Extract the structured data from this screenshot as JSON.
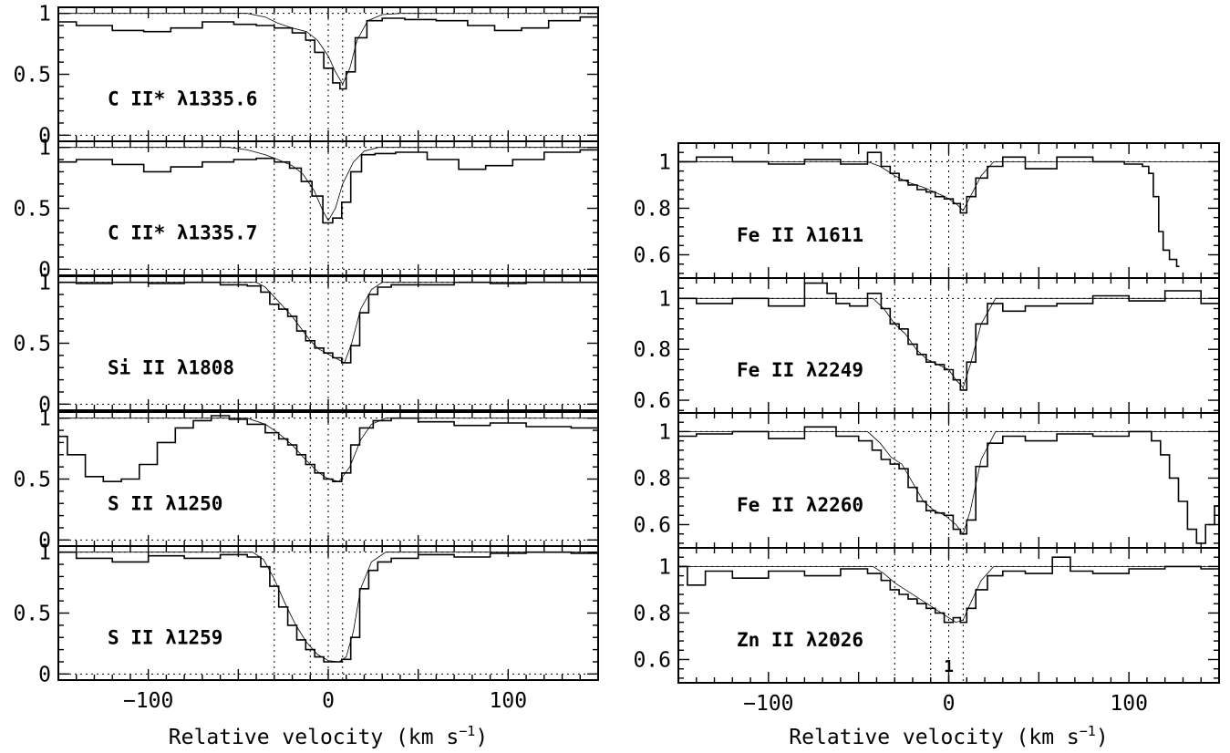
{
  "colors": {
    "ink": "#000000",
    "background": "#ffffff"
  },
  "chart_data": [
    {
      "type": "line",
      "xlabel": "Relative velocity (km s",
      "xlabel_sup": "−1",
      "xlabel_close": ")",
      "xlim": [
        -150,
        150
      ],
      "x_ticks": [
        -100,
        0,
        100
      ],
      "x_tick_labels": [
        "−100",
        "0",
        "100"
      ],
      "y_tick_labels": [
        "1",
        "0.5",
        "0"
      ],
      "vlines": [
        -30,
        -10,
        0,
        8
      ],
      "panels": [
        {
          "label": "C II* λ1335.6",
          "ylim": [
            -0.05,
            1.05
          ],
          "y_ticks": [
            1,
            0.5,
            0
          ],
          "continuum": 1.0,
          "zero_dotted": true,
          "data_x": [
            -150,
            -130,
            -110,
            -95,
            -80,
            -60,
            -45,
            -35,
            -25,
            -15,
            -10,
            -5,
            0,
            5,
            8,
            12,
            18,
            25,
            35,
            50,
            70,
            85,
            100,
            115,
            130,
            150
          ],
          "data_y": [
            0.93,
            0.9,
            0.86,
            0.85,
            0.88,
            0.93,
            0.91,
            0.9,
            0.88,
            0.84,
            0.78,
            0.68,
            0.55,
            0.43,
            0.38,
            0.52,
            0.8,
            0.94,
            0.96,
            0.95,
            0.94,
            0.9,
            0.86,
            0.88,
            0.94,
            0.97
          ],
          "model_x": [
            -150,
            -45,
            -35,
            -28,
            -20,
            -12,
            -6,
            0,
            4,
            8,
            12,
            16,
            22,
            30,
            40,
            150
          ],
          "model_y": [
            1.0,
            1.0,
            0.97,
            0.92,
            0.88,
            0.85,
            0.78,
            0.65,
            0.52,
            0.42,
            0.55,
            0.78,
            0.94,
            0.99,
            1.0,
            1.0
          ]
        },
        {
          "label": "C II* λ1335.7",
          "ylim": [
            -0.05,
            1.05
          ],
          "y_ticks": [
            1,
            0.5,
            0
          ],
          "continuum": 1.0,
          "zero_dotted": true,
          "data_x": [
            -150,
            -130,
            -110,
            -95,
            -80,
            -60,
            -45,
            -35,
            -25,
            -18,
            -12,
            -6,
            0,
            5,
            10,
            15,
            22,
            30,
            45,
            65,
            80,
            95,
            110,
            130,
            150
          ],
          "data_y": [
            0.88,
            0.9,
            0.86,
            0.8,
            0.84,
            0.88,
            0.9,
            0.91,
            0.88,
            0.83,
            0.72,
            0.6,
            0.38,
            0.42,
            0.55,
            0.8,
            0.94,
            0.95,
            0.96,
            0.9,
            0.82,
            0.85,
            0.9,
            0.96,
            0.98
          ],
          "model_x": [
            -150,
            -55,
            -45,
            -35,
            -28,
            -20,
            -14,
            -8,
            -3,
            0,
            4,
            8,
            14,
            20,
            28,
            150
          ],
          "model_y": [
            1.0,
            1.0,
            0.98,
            0.94,
            0.9,
            0.85,
            0.78,
            0.65,
            0.48,
            0.4,
            0.5,
            0.7,
            0.88,
            0.97,
            1.0,
            1.0
          ]
        },
        {
          "label": "Si II λ1808",
          "ylim": [
            -0.05,
            1.05
          ],
          "y_ticks": [
            1,
            0.5,
            0
          ],
          "continuum": 1.0,
          "zero_dotted": true,
          "data_x": [
            -150,
            -130,
            -110,
            -90,
            -70,
            -50,
            -40,
            -35,
            -30,
            -25,
            -20,
            -15,
            -10,
            -5,
            0,
            5,
            10,
            15,
            20,
            25,
            30,
            40,
            60,
            80,
            100,
            120,
            150
          ],
          "data_y": [
            1.0,
            0.99,
            1.0,
            0.99,
            1.0,
            0.98,
            0.97,
            0.92,
            0.82,
            0.78,
            0.72,
            0.6,
            0.52,
            0.46,
            0.42,
            0.38,
            0.34,
            0.48,
            0.75,
            0.9,
            0.96,
            0.98,
            0.98,
            1.0,
            0.99,
            1.0,
            1.0
          ],
          "model_x": [
            -150,
            -40,
            -35,
            -30,
            -25,
            -20,
            -15,
            -10,
            -5,
            0,
            5,
            9,
            13,
            18,
            24,
            30,
            150
          ],
          "model_y": [
            1.0,
            1.0,
            0.96,
            0.88,
            0.8,
            0.72,
            0.62,
            0.52,
            0.45,
            0.41,
            0.37,
            0.34,
            0.5,
            0.78,
            0.94,
            1.0,
            1.0
          ]
        },
        {
          "label": "S II λ1250",
          "ylim": [
            -0.05,
            1.05
          ],
          "y_ticks": [
            1,
            0.5,
            0
          ],
          "continuum": 1.0,
          "zero_dotted": true,
          "data_x": [
            -150,
            -140,
            -130,
            -120,
            -110,
            -100,
            -90,
            -80,
            -70,
            -60,
            -50,
            -40,
            -30,
            -25,
            -20,
            -15,
            -10,
            -5,
            0,
            5,
            10,
            15,
            20,
            30,
            40,
            60,
            80,
            100,
            120,
            150
          ],
          "data_y": [
            0.85,
            0.7,
            0.52,
            0.48,
            0.5,
            0.62,
            0.8,
            0.92,
            0.98,
            1.02,
            0.99,
            0.95,
            0.88,
            0.83,
            0.78,
            0.7,
            0.62,
            0.55,
            0.5,
            0.48,
            0.55,
            0.78,
            0.92,
            0.98,
            1.0,
            0.97,
            0.94,
            0.96,
            0.93,
            0.92
          ],
          "model_x": [
            -150,
            -45,
            -35,
            -28,
            -20,
            -12,
            -5,
            0,
            6,
            12,
            18,
            24,
            32,
            150
          ],
          "model_y": [
            1.0,
            1.0,
            0.95,
            0.88,
            0.78,
            0.65,
            0.55,
            0.5,
            0.48,
            0.6,
            0.82,
            0.95,
            1.0,
            1.0
          ]
        },
        {
          "label": "S II λ1259",
          "ylim": [
            -0.05,
            1.05
          ],
          "y_ticks": [
            1,
            0.5,
            0
          ],
          "continuum": 1.0,
          "zero_dotted": true,
          "data_x": [
            -150,
            -130,
            -110,
            -90,
            -70,
            -50,
            -40,
            -35,
            -30,
            -25,
            -20,
            -15,
            -10,
            -5,
            0,
            5,
            10,
            15,
            20,
            25,
            30,
            40,
            60,
            80,
            100,
            120,
            150
          ],
          "data_y": [
            1.0,
            0.95,
            0.92,
            0.97,
            0.95,
            0.98,
            0.96,
            0.88,
            0.72,
            0.55,
            0.4,
            0.28,
            0.2,
            0.14,
            0.1,
            0.1,
            0.12,
            0.3,
            0.7,
            0.85,
            0.92,
            0.95,
            0.98,
            0.96,
            0.99,
            1.0,
            0.99
          ],
          "model_x": [
            -150,
            -42,
            -36,
            -30,
            -24,
            -18,
            -12,
            -6,
            0,
            6,
            10,
            14,
            18,
            24,
            32,
            150
          ],
          "model_y": [
            1.0,
            1.0,
            0.94,
            0.78,
            0.58,
            0.4,
            0.26,
            0.16,
            0.11,
            0.1,
            0.14,
            0.35,
            0.7,
            0.92,
            1.0,
            1.0
          ]
        }
      ]
    },
    {
      "type": "line",
      "xlabel": "Relative velocity (km s",
      "xlabel_sup": "−1",
      "xlabel_close": ")",
      "xlim": [
        -150,
        150
      ],
      "x_ticks": [
        -100,
        0,
        100
      ],
      "x_tick_labels": [
        "−100",
        "0",
        "100"
      ],
      "y_tick_labels": [
        "1",
        "0.8",
        "0.6"
      ],
      "vlines": [
        -30,
        -10,
        0,
        8
      ],
      "component_marker": "1",
      "panels": [
        {
          "label": "Fe II λ1611",
          "ylim": [
            0.5,
            1.08
          ],
          "y_ticks": [
            1,
            0.8,
            0.6
          ],
          "continuum": 1.0,
          "data_x": [
            -150,
            -130,
            -110,
            -90,
            -70,
            -50,
            -40,
            -35,
            -30,
            -25,
            -20,
            -15,
            -10,
            -5,
            0,
            5,
            8,
            12,
            18,
            25,
            35,
            50,
            70,
            90,
            105,
            110,
            112,
            115,
            118,
            120,
            125,
            128
          ],
          "data_y": [
            1.0,
            1.02,
            1.0,
            0.99,
            1.01,
            0.99,
            1.04,
            0.98,
            0.95,
            0.92,
            0.9,
            0.88,
            0.87,
            0.85,
            0.84,
            0.82,
            0.78,
            0.85,
            0.93,
            0.98,
            1.02,
            0.97,
            1.02,
            1.0,
            0.99,
            0.98,
            0.95,
            0.85,
            0.7,
            0.62,
            0.58,
            0.55
          ],
          "model_x": [
            -150,
            -45,
            -38,
            -30,
            -22,
            -14,
            -8,
            -2,
            4,
            8,
            12,
            18,
            25,
            150
          ],
          "model_y": [
            1.0,
            1.0,
            0.98,
            0.94,
            0.91,
            0.89,
            0.87,
            0.85,
            0.82,
            0.79,
            0.85,
            0.94,
            1.0,
            1.0
          ]
        },
        {
          "label": "Fe II λ2249",
          "ylim": [
            0.55,
            1.08
          ],
          "y_ticks": [
            1,
            0.8,
            0.6
          ],
          "continuum": 1.0,
          "data_x": [
            -150,
            -130,
            -110,
            -90,
            -70,
            -65,
            -60,
            -50,
            -40,
            -35,
            -30,
            -25,
            -20,
            -15,
            -10,
            -5,
            0,
            5,
            8,
            12,
            18,
            25,
            35,
            50,
            70,
            90,
            110,
            130,
            150
          ],
          "data_y": [
            1.0,
            0.98,
            1.0,
            0.97,
            1.06,
            1.02,
            0.98,
            0.97,
            1.02,
            0.96,
            0.9,
            0.88,
            0.82,
            0.78,
            0.75,
            0.74,
            0.72,
            0.68,
            0.64,
            0.75,
            0.9,
            0.98,
            0.95,
            0.97,
            0.98,
            1.01,
            0.99,
            1.03,
            0.98
          ],
          "model_x": [
            -150,
            -42,
            -36,
            -30,
            -24,
            -18,
            -12,
            -6,
            0,
            4,
            8,
            12,
            18,
            26,
            150
          ],
          "model_y": [
            1.0,
            1.0,
            0.96,
            0.9,
            0.86,
            0.8,
            0.76,
            0.74,
            0.72,
            0.68,
            0.65,
            0.74,
            0.9,
            1.0,
            1.0
          ]
        },
        {
          "label": "Fe II λ2260",
          "ylim": [
            0.5,
            1.08
          ],
          "y_ticks": [
            1,
            0.8,
            0.6
          ],
          "continuum": 1.0,
          "data_x": [
            -150,
            -130,
            -110,
            -90,
            -70,
            -55,
            -45,
            -40,
            -35,
            -30,
            -25,
            -20,
            -15,
            -10,
            -5,
            0,
            5,
            8,
            12,
            18,
            25,
            35,
            50,
            70,
            90,
            110,
            115,
            120,
            125,
            130,
            135,
            140,
            145,
            150
          ],
          "data_y": [
            0.98,
            0.99,
            1.0,
            0.97,
            1.02,
            0.98,
            0.96,
            0.92,
            0.88,
            0.86,
            0.84,
            0.76,
            0.7,
            0.66,
            0.65,
            0.64,
            0.58,
            0.56,
            0.62,
            0.85,
            0.95,
            0.98,
            0.96,
            0.99,
            0.98,
            1.0,
            0.96,
            0.9,
            0.8,
            0.7,
            0.58,
            0.52,
            0.6,
            0.68
          ],
          "model_x": [
            -150,
            -45,
            -38,
            -32,
            -26,
            -20,
            -14,
            -8,
            -2,
            4,
            8,
            12,
            18,
            26,
            150
          ],
          "model_y": [
            1.0,
            1.0,
            0.95,
            0.89,
            0.86,
            0.78,
            0.7,
            0.66,
            0.64,
            0.6,
            0.56,
            0.66,
            0.88,
            1.0,
            1.0
          ]
        },
        {
          "label": "Zn II λ2026",
          "ylim": [
            0.5,
            1.08
          ],
          "y_ticks": [
            1,
            0.8,
            0.6
          ],
          "continuum": 1.0,
          "data_x": [
            -150,
            -140,
            -130,
            -110,
            -90,
            -70,
            -50,
            -40,
            -35,
            -30,
            -25,
            -20,
            -15,
            -10,
            -5,
            0,
            5,
            8,
            12,
            18,
            25,
            35,
            50,
            65,
            70,
            90,
            110,
            130,
            150
          ],
          "data_y": [
            1.0,
            0.92,
            0.98,
            0.95,
            0.98,
            0.96,
            0.99,
            0.97,
            0.94,
            0.9,
            0.88,
            0.86,
            0.84,
            0.82,
            0.8,
            0.76,
            0.78,
            0.76,
            0.82,
            0.9,
            0.96,
            0.98,
            0.97,
            1.04,
            0.98,
            0.97,
            0.99,
            1.0,
            0.99
          ],
          "model_x": [
            -150,
            -42,
            -36,
            -30,
            -24,
            -18,
            -12,
            -6,
            0,
            4,
            8,
            12,
            18,
            25,
            150
          ],
          "model_y": [
            1.0,
            1.0,
            0.97,
            0.93,
            0.9,
            0.87,
            0.84,
            0.81,
            0.78,
            0.76,
            0.77,
            0.84,
            0.94,
            1.0,
            1.0
          ]
        }
      ]
    }
  ]
}
